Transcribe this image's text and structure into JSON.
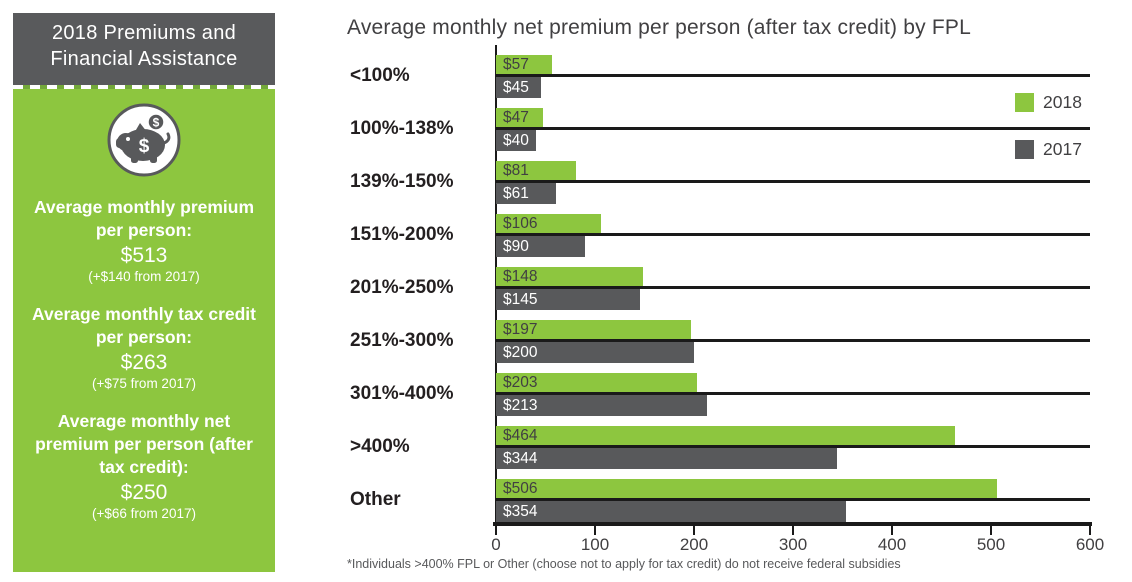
{
  "colors": {
    "green_2018": "#8dc63f",
    "gray_2017": "#58595b",
    "sidebar_header_bg": "#595a5c",
    "sidebar_body_bg": "#8dc63f",
    "axis_line": "#1a1a1a",
    "title_text": "#414042",
    "category_text": "#231f20",
    "footnote_text": "#58595b"
  },
  "sidebar": {
    "title": "2018 Premiums and Financial Assistance",
    "icon": "piggy-bank-icon",
    "stats": [
      {
        "heading": "Average monthly premium per person:",
        "value": "$513",
        "note": "(+$140 from 2017)"
      },
      {
        "heading": "Average monthly tax credit per person:",
        "value": "$263",
        "note": "(+$75 from 2017)"
      },
      {
        "heading": "Average monthly net premium per person (after tax credit):",
        "value": "$250",
        "note": "(+$66 from 2017)"
      }
    ]
  },
  "chart_data": {
    "type": "bar",
    "orientation": "horizontal",
    "title": "Average monthly net premium per person (after tax credit) by FPL",
    "categories": [
      "<100%",
      "100%-138%",
      "139%-150%",
      "151%-200%",
      "201%-250%",
      "251%-300%",
      "301%-400%",
      ">400%",
      "Other"
    ],
    "series": [
      {
        "name": "2018",
        "color": "#8dc63f",
        "values": [
          57,
          47,
          81,
          106,
          148,
          197,
          203,
          464,
          506
        ]
      },
      {
        "name": "2017",
        "color": "#58595b",
        "values": [
          45,
          40,
          61,
          90,
          145,
          200,
          213,
          344,
          354
        ]
      }
    ],
    "value_label_prefix": "$",
    "xlim": [
      0,
      600
    ],
    "x_ticks": [
      0,
      100,
      200,
      300,
      400,
      500,
      600
    ],
    "grid": "per-category separator lines",
    "legend_position": "top-right",
    "footnote": "*Individuals >400% FPL or Other (choose not to apply for tax credit) do not receive federal subsidies"
  }
}
